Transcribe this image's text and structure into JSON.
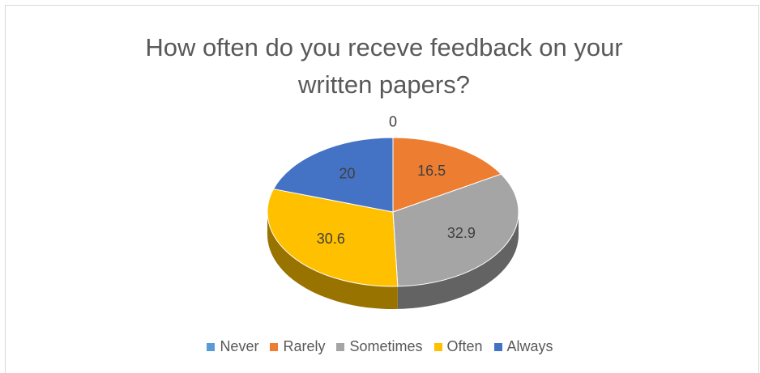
{
  "chart_data": {
    "type": "pie",
    "title": "How often do you receve feedback on your written papers?",
    "categories": [
      "Never",
      "Rarely",
      "Sometimes",
      "Often",
      "Always"
    ],
    "values": [
      0,
      16.5,
      32.9,
      30.6,
      20
    ],
    "colors": [
      "#5b9bd5",
      "#ed7d31",
      "#a5a5a5",
      "#ffc000",
      "#4472c4"
    ],
    "legend": "bottom"
  }
}
